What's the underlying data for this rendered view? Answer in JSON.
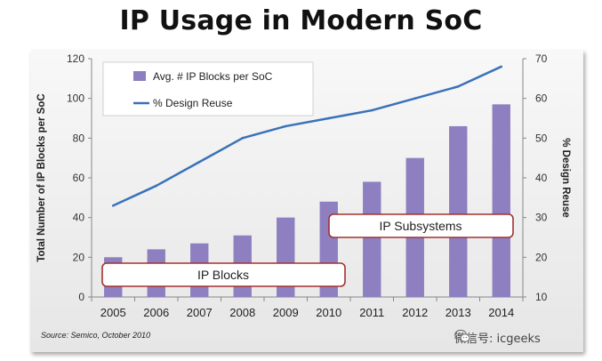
{
  "chart_data": {
    "type": "bar+line",
    "title": "IP Usage in Modern SoC",
    "categories": [
      "2005",
      "2006",
      "2007",
      "2008",
      "2009",
      "2010",
      "2011",
      "2012",
      "2013",
      "2014"
    ],
    "series": [
      {
        "name": "Avg. # IP Blocks per SoC",
        "type": "bar",
        "axis": "left",
        "color": "#8d7fc0",
        "values": [
          20,
          24,
          27,
          31,
          40,
          48,
          58,
          70,
          86,
          97
        ]
      },
      {
        "name": "% Design Reuse",
        "type": "line",
        "axis": "right",
        "color": "#3a72b8",
        "values": [
          33,
          38,
          44,
          50,
          53,
          55,
          57,
          60,
          63,
          68
        ]
      }
    ],
    "ylabel_left": "Total Number of IP Blocks per SoC",
    "ylabel_right": "% Design Reuse",
    "ylim_left": [
      0,
      120
    ],
    "yticks_left": [
      0,
      20,
      40,
      60,
      80,
      100,
      120
    ],
    "ylim_right": [
      10,
      70
    ],
    "yticks_right": [
      10,
      20,
      30,
      40,
      50,
      60,
      70
    ],
    "grid": false,
    "legend_position": "top-left",
    "annotations": [
      "IP Blocks",
      "IP Subsystems"
    ],
    "source": "Source: Semico, October 2010"
  },
  "watermark": {
    "text": "微信号: icgeeks",
    "icon": "wechat-icon"
  }
}
